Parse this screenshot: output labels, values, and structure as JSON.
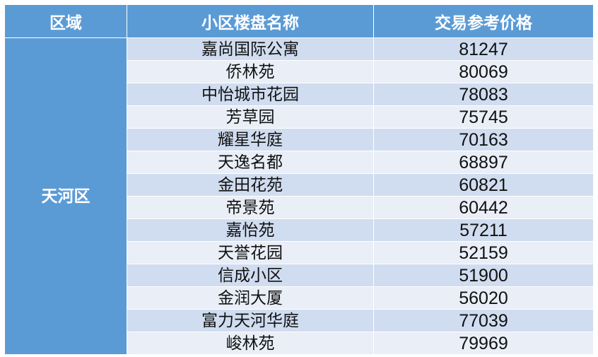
{
  "table": {
    "headers": [
      "区域",
      "小区楼盘名称",
      "交易参考价格"
    ],
    "region": "天河区",
    "rows": [
      {
        "name": "嘉尚国际公寓",
        "price": "81247"
      },
      {
        "name": "侨林苑",
        "price": "80069"
      },
      {
        "name": "中怡城市花园",
        "price": "78083"
      },
      {
        "name": "芳草园",
        "price": "75745"
      },
      {
        "name": "耀星华庭",
        "price": "70163"
      },
      {
        "name": "天逸名都",
        "price": "68897"
      },
      {
        "name": "金田花苑",
        "price": "60821"
      },
      {
        "name": "帝景苑",
        "price": "60442"
      },
      {
        "name": "嘉怡苑",
        "price": "57211"
      },
      {
        "name": "天誉花园",
        "price": "52159"
      },
      {
        "name": "信成小区",
        "price": "51900"
      },
      {
        "name": "金润大厦",
        "price": "56020"
      },
      {
        "name": "富力天河华庭",
        "price": "77039"
      },
      {
        "name": "峻林苑",
        "price": "79969"
      }
    ]
  },
  "colors": {
    "header_bg": "#5b9bd5",
    "row_dark": "#d0dcef",
    "row_light": "#e9eef7"
  }
}
